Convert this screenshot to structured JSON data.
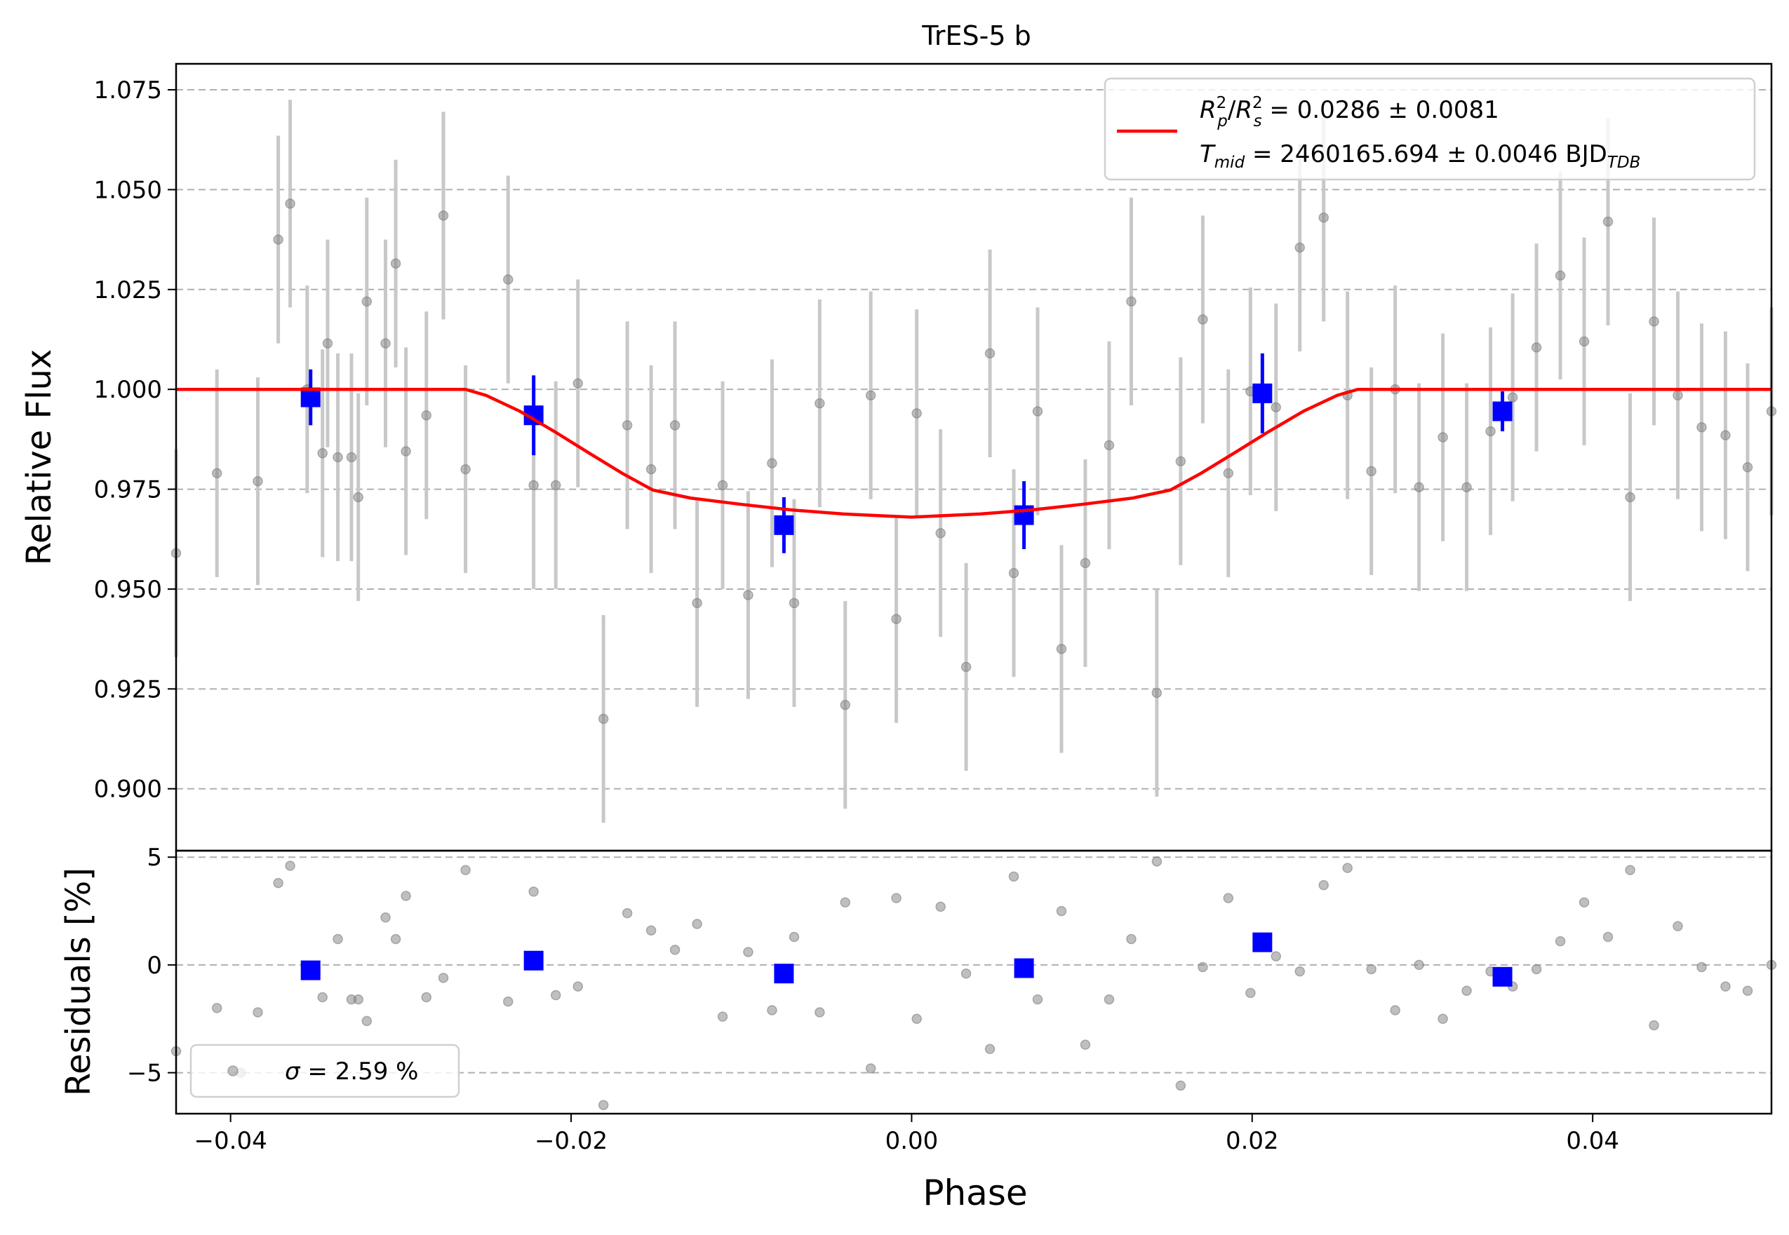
{
  "chart_data": [
    {
      "type": "scatter",
      "title": "TrES-5 b",
      "ylabel": "Relative Flux",
      "xlim": [
        -0.0432,
        0.0505
      ],
      "ylim": [
        0.8845,
        1.0815
      ],
      "grid": "horizontal dashed",
      "y_ticks": [
        0.9,
        0.925,
        0.95,
        0.975,
        1.0,
        1.025,
        1.05,
        1.075
      ],
      "y_tick_labels": [
        "0.900",
        "0.925",
        "0.950",
        "0.975",
        "1.000",
        "1.025",
        "1.050",
        "1.075"
      ],
      "legend": {
        "placement": "top-right",
        "line1": {
          "a": "R",
          "a_sup": "2",
          "a_sub": "p",
          "b": "R",
          "b_sup": "2",
          "b_sub": "s",
          "text": " = 0.0286 ± 0.0081"
        },
        "line2": {
          "a": "T",
          "a_sub": "mid",
          "text": " = 2460165.694 ± 0.0046 BJD",
          "unit_sub": "TDB"
        }
      },
      "colors": {
        "data": "#808080",
        "errorbar": "#c8c8c8",
        "binned": "#0000ff",
        "model": "#ff0000"
      },
      "model": {
        "series_color": "#ff0000",
        "x": [
          -0.0432,
          -0.0262,
          -0.025,
          -0.023,
          -0.021,
          -0.019,
          -0.017,
          -0.0152,
          -0.013,
          -0.01,
          -0.007,
          -0.004,
          -0.001,
          0.0,
          0.001,
          0.004,
          0.007,
          0.01,
          0.013,
          0.0152,
          0.017,
          0.019,
          0.021,
          0.023,
          0.025,
          0.0262,
          0.0505
        ],
        "y": [
          1.0,
          1.0,
          0.9985,
          0.9945,
          0.9895,
          0.9842,
          0.979,
          0.9748,
          0.9728,
          0.9712,
          0.9698,
          0.9688,
          0.9682,
          0.968,
          0.9682,
          0.9688,
          0.9698,
          0.9712,
          0.9728,
          0.9748,
          0.979,
          0.9842,
          0.9895,
          0.9945,
          0.9985,
          1.0,
          1.0
        ]
      },
      "data": {
        "x": [
          -0.0432,
          -0.0408,
          -0.0384,
          -0.0372,
          -0.0365,
          -0.0355,
          -0.0346,
          -0.0343,
          -0.0337,
          -0.0329,
          -0.0325,
          -0.032,
          -0.0309,
          -0.0303,
          -0.0297,
          -0.0285,
          -0.0275,
          -0.0262,
          -0.0237,
          -0.0222,
          -0.0209,
          -0.0196,
          -0.0181,
          -0.0167,
          -0.0153,
          -0.0139,
          -0.0126,
          -0.0111,
          -0.0096,
          -0.0082,
          -0.0069,
          -0.0054,
          -0.0039,
          -0.0024,
          -0.0009,
          0.0003,
          0.0017,
          0.0032,
          0.0046,
          0.006,
          0.0074,
          0.0088,
          0.0102,
          0.0116,
          0.0129,
          0.0144,
          0.0158,
          0.0171,
          0.0186,
          0.0199,
          0.0214,
          0.0228,
          0.0242,
          0.0256,
          0.027,
          0.0284,
          0.0298,
          0.0312,
          0.0326,
          0.034,
          0.0353,
          0.0367,
          0.0381,
          0.0395,
          0.0409,
          0.0422,
          0.0436,
          0.045,
          0.0464,
          0.0478,
          0.0491,
          0.0505
        ],
        "y": [
          0.959,
          0.979,
          0.977,
          1.0375,
          1.0465,
          1.0,
          0.984,
          1.0115,
          0.983,
          0.983,
          0.973,
          1.022,
          1.0115,
          1.0315,
          0.9845,
          0.9935,
          1.0435,
          0.98,
          1.0275,
          0.976,
          0.976,
          1.0015,
          0.9175,
          0.991,
          0.98,
          0.991,
          0.9465,
          0.976,
          0.9485,
          0.9815,
          0.9465,
          0.9965,
          0.921,
          0.9985,
          0.9425,
          0.994,
          0.964,
          0.9305,
          1.009,
          0.954,
          0.9945,
          0.935,
          0.9565,
          0.986,
          1.022,
          0.924,
          0.982,
          1.0175,
          0.979,
          0.9995,
          0.9955,
          1.0355,
          1.043,
          0.9985,
          0.9795,
          1.0,
          0.9755,
          0.988,
          0.9755,
          0.9895,
          0.998,
          1.0105,
          1.0285,
          1.012,
          1.042,
          0.973,
          1.017,
          0.9985,
          0.9905,
          0.9885,
          0.9805,
          0.9945
        ],
        "yerr": 0.026
      },
      "binned": {
        "x": [
          -0.0353,
          -0.0222,
          -0.0075,
          0.0066,
          0.0206,
          0.0347
        ],
        "y": [
          0.998,
          0.9935,
          0.966,
          0.9685,
          0.999,
          0.9945
        ],
        "yerr": [
          0.007,
          0.01,
          0.007,
          0.0085,
          0.01,
          0.005
        ]
      }
    },
    {
      "type": "scatter",
      "xlabel": "Phase",
      "ylabel": "Residuals [%]",
      "xlim": [
        -0.0432,
        0.0505
      ],
      "ylim": [
        -6.9,
        5.3
      ],
      "x_ticks": [
        -0.04,
        -0.02,
        0.0,
        0.02,
        0.04
      ],
      "x_tick_labels": [
        "−0.04",
        "−0.02",
        "0.00",
        "0.02",
        "0.04"
      ],
      "y_ticks": [
        -5,
        0,
        5
      ],
      "y_tick_labels": [
        "−5",
        "0",
        "5"
      ],
      "grid": "horizontal dashed",
      "legend": {
        "placement": "bottom-left",
        "symbol": "σ",
        "text": " = 2.59 %"
      },
      "data": {
        "x": [
          -0.0432,
          -0.0408,
          -0.0394,
          -0.0384,
          -0.0372,
          -0.0365,
          -0.0346,
          -0.0337,
          -0.0329,
          -0.0325,
          -0.032,
          -0.0309,
          -0.0303,
          -0.0297,
          -0.0285,
          -0.0275,
          -0.0262,
          -0.0237,
          -0.0222,
          -0.0209,
          -0.0196,
          -0.0181,
          -0.0167,
          -0.0153,
          -0.0139,
          -0.0126,
          -0.0111,
          -0.0096,
          -0.0082,
          -0.0069,
          -0.0054,
          -0.0039,
          -0.0024,
          -0.0009,
          0.0003,
          0.0017,
          0.0032,
          0.0046,
          0.006,
          0.0074,
          0.0088,
          0.0102,
          0.0116,
          0.0129,
          0.0144,
          0.0158,
          0.0171,
          0.0186,
          0.0199,
          0.0214,
          0.0228,
          0.0242,
          0.0256,
          0.027,
          0.0284,
          0.0298,
          0.0312,
          0.0326,
          0.034,
          0.0353,
          0.0367,
          0.0381,
          0.0395,
          0.0409,
          0.0422,
          0.0436,
          0.045,
          0.0464,
          0.0478,
          0.0491,
          0.0505
        ],
        "y": [
          -4.0,
          -2.0,
          -5.0,
          -2.2,
          3.8,
          4.6,
          -1.5,
          1.2,
          -1.6,
          -1.6,
          -2.6,
          2.2,
          1.2,
          3.2,
          -1.5,
          -0.6,
          4.4,
          -1.7,
          3.4,
          -1.4,
          -1.0,
          -6.5,
          2.4,
          1.6,
          0.7,
          1.9,
          -2.4,
          0.6,
          -2.1,
          1.3,
          -2.2,
          2.9,
          -4.8,
          3.1,
          -2.5,
          2.7,
          -0.4,
          -3.9,
          4.1,
          -1.6,
          2.5,
          -3.7,
          -1.6,
          1.2,
          4.8,
          -5.6,
          -0.1,
          3.1,
          -1.3,
          0.4,
          -0.3,
          3.7,
          4.5,
          -0.2,
          -2.1,
          0.0,
          -2.5,
          -1.2,
          -0.3,
          -1.0,
          -0.2,
          1.1,
          2.9,
          1.3,
          4.4,
          -2.8,
          1.8,
          -0.1,
          -1.0,
          -1.2,
          0.0
        ]
      },
      "binned": {
        "x": [
          -0.0353,
          -0.0222,
          -0.0075,
          0.0066,
          0.0206,
          0.0347
        ],
        "y": [
          -0.25,
          0.2,
          -0.4,
          -0.15,
          1.05,
          -0.55
        ]
      }
    }
  ]
}
